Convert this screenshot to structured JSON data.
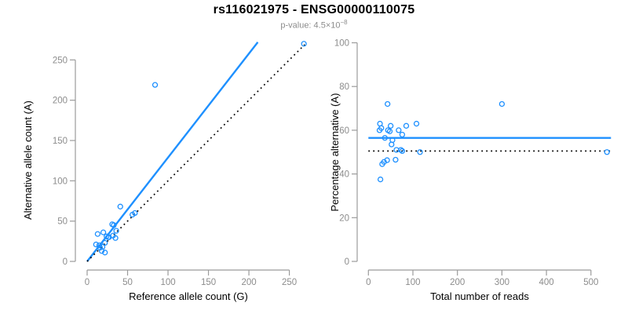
{
  "header": {
    "title": "rs116021975 - ENSG00000110075",
    "subtitle_base": "p-value: 4.5×10",
    "subtitle_exponent": "−8"
  },
  "colors": {
    "accent_blue": "#1E90FF",
    "dotted_line": "#000000",
    "axis_line": "#9b9b9b",
    "tick_label": "#8c8c8c",
    "axis_title": "#000000"
  },
  "chart_data": [
    {
      "type": "scatter",
      "xlabel": "Reference allele count (G)",
      "ylabel": "Alternative allele count (A)",
      "xlim": [
        0,
        270
      ],
      "ylim": [
        0,
        273
      ],
      "xticks": [
        0,
        50,
        100,
        150,
        200,
        250
      ],
      "yticks": [
        0,
        50,
        100,
        150,
        200,
        250
      ],
      "grid": false,
      "points": [
        [
          11,
          21
        ],
        [
          13,
          34
        ],
        [
          15,
          20
        ],
        [
          16,
          17
        ],
        [
          18,
          13
        ],
        [
          19,
          18
        ],
        [
          20,
          36
        ],
        [
          22,
          23
        ],
        [
          22,
          11
        ],
        [
          24,
          31
        ],
        [
          26,
          30
        ],
        [
          27,
          30
        ],
        [
          31,
          46
        ],
        [
          32,
          32
        ],
        [
          33,
          45
        ],
        [
          35,
          29
        ],
        [
          36,
          38
        ],
        [
          41,
          68
        ],
        [
          56,
          58
        ],
        [
          59,
          60
        ],
        [
          84,
          219
        ],
        [
          268,
          270
        ]
      ],
      "lines": [
        {
          "name": "regression-line",
          "style": "solid",
          "x1": 0,
          "y1": 0,
          "x2": 211,
          "y2": 272
        },
        {
          "name": "identity-line",
          "style": "dotted",
          "x1": 0,
          "y1": 0,
          "x2": 269,
          "y2": 269
        }
      ]
    },
    {
      "type": "scatter",
      "xlabel": "Total number of reads",
      "ylabel": "Percentage alternative (A)",
      "xlim": [
        0,
        545
      ],
      "ylim": [
        0,
        100
      ],
      "xticks": [
        0,
        100,
        200,
        300,
        400,
        500
      ],
      "yticks": [
        0,
        20,
        40,
        60,
        80,
        100
      ],
      "grid": false,
      "points": [
        [
          27,
          37.5
        ],
        [
          31,
          44.5
        ],
        [
          35,
          45.5
        ],
        [
          42,
          46.3
        ],
        [
          61,
          46.5
        ],
        [
          25,
          60
        ],
        [
          26,
          63
        ],
        [
          29,
          61
        ],
        [
          43,
          72
        ],
        [
          44,
          60
        ],
        [
          48,
          59.5
        ],
        [
          50,
          62
        ],
        [
          54,
          55.5
        ],
        [
          68,
          60
        ],
        [
          76,
          58
        ],
        [
          85,
          62
        ],
        [
          37,
          56.5
        ],
        [
          52,
          53.5
        ],
        [
          63,
          51
        ],
        [
          73,
          51
        ],
        [
          76,
          50.5
        ],
        [
          116,
          50
        ],
        [
          108,
          63
        ],
        [
          300,
          72
        ],
        [
          536,
          50
        ]
      ],
      "lines": [
        {
          "name": "mean-percentage-line",
          "style": "solid",
          "x1": 0,
          "y1": 56.5,
          "x2": 545,
          "y2": 56.5
        },
        {
          "name": "fifty-percent-line",
          "style": "dotted",
          "x1": 0,
          "y1": 50.5,
          "x2": 545,
          "y2": 50.5
        }
      ]
    }
  ]
}
